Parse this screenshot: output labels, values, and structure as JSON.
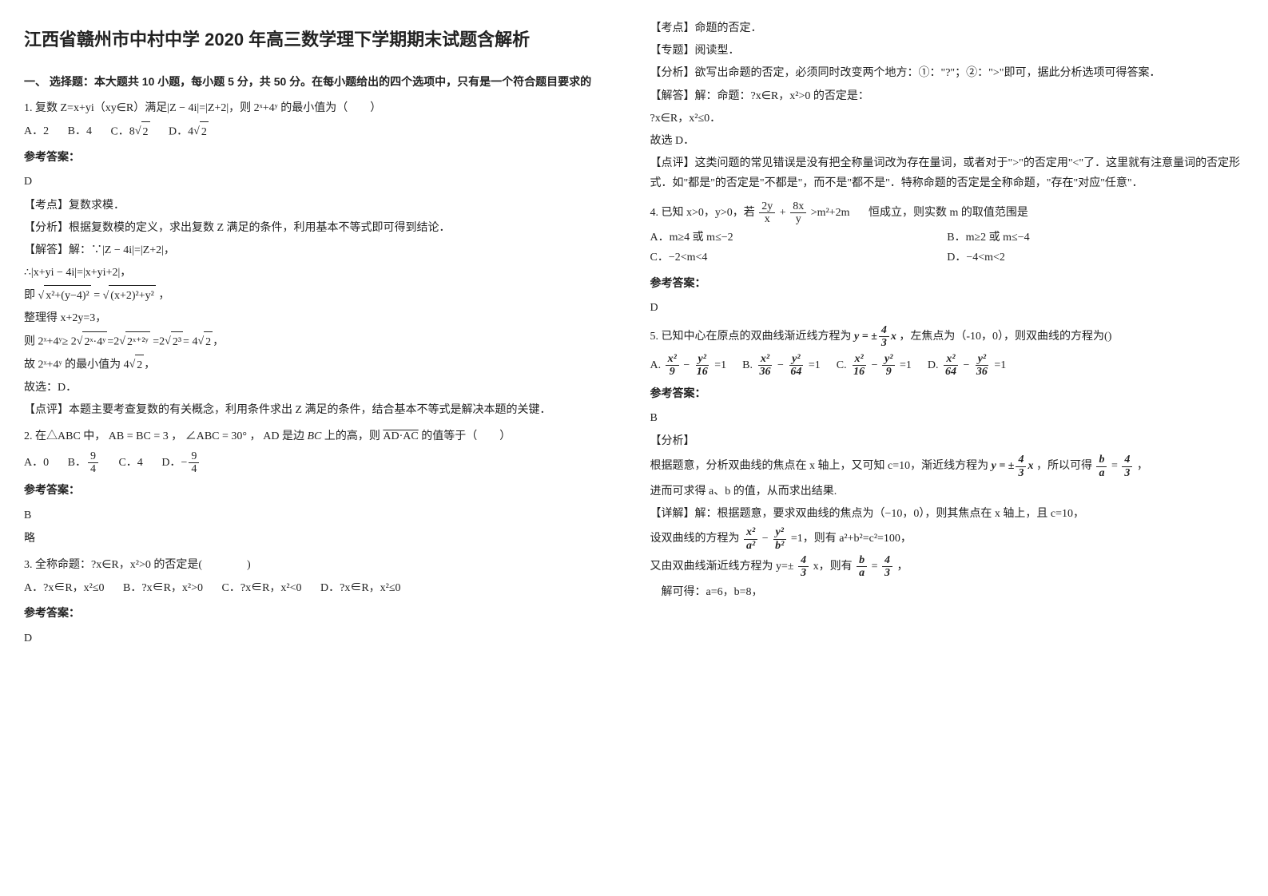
{
  "title": "江西省赣州市中村中学 2020 年高三数学理下学期期末试题含解析",
  "part1_heading": "一、 选择题：本大题共 10 小题，每小题 5 分，共 50 分。在每小题给出的四个选项中，只有是一个符合题目要求的",
  "q1": {
    "stem": "1. 复数 Z=x+yi（xy∈R）满足|Z − 4i|=|Z+2|，则 2ˣ+4ʸ 的最小值为（　　）",
    "opts": {
      "a": "A．2",
      "b": "B．4",
      "c": "C．8",
      "d": "D．4"
    },
    "sqrt_c": "2",
    "sqrt_d": "2",
    "ans_label": "参考答案：",
    "ans": "D",
    "kp": "【考点】复数求模．",
    "fx": "【分析】根据复数模的定义，求出复数 Z 满足的条件，利用基本不等式即可得到结论．",
    "jd1": "【解答】解：∵|Z − 4i|=|Z+2|，",
    "jd2": "∴|x+yi − 4i|=|x+yi+2|，",
    "jd3a": "即",
    "jd3b": "x²+(y−4)²",
    "jd3c": "=",
    "jd3d": "(x+2)²+y²",
    "jd3e": "，",
    "jd4": "整理得 x+2y=3，",
    "jd5a": "则 2ˣ+4ʸ≥ 2",
    "jd5b": "2ˣ·4ʸ",
    "jd5c": "=2",
    "jd5d": "2ˣ⁺²ʸ",
    "jd5e": " =2",
    "jd5f": "2³",
    "jd5g": "= 4",
    "jd5h": "2",
    "jd5i": "，",
    "jd6a": "故 2ˣ+4ʸ 的最小值为 4",
    "jd6b": "2",
    "jd6c": "，",
    "jd7": "故选：D．",
    "dp": "【点评】本题主要考查复数的有关概念，利用条件求出 Z 满足的条件，结合基本不等式是解决本题的关键．"
  },
  "q2": {
    "stem_a": "2. 在△ABC 中，",
    "ab_bc": "AB = BC = 3",
    "comma1": "，",
    "angle": "∠ABC = 30°",
    "comma2": "，",
    "ad_is": "AD 是边",
    "bc": "BC",
    "on_high": "上的高，则",
    "ad_ac": "AD·AC",
    "tail": "的值等于（　　）",
    "opt_a": "A．0",
    "opt_b": "B．",
    "opt_c": "C．4",
    "opt_d": "D．",
    "frac_b_num": "9",
    "frac_b_den": "4",
    "frac_d_num": "9",
    "frac_d_den": "4",
    "neg_d": "−",
    "ans_label": "参考答案：",
    "ans": "B",
    "略": "略"
  },
  "q3": {
    "stem": "3. 全称命题：?x∈R，x²>0 的否定是(　　　　)",
    "opts": {
      "a": "A．?x∈R，x²≤0",
      "b": "B．?x∈R，x²>0",
      "c": "C．?x∈R，x²<0",
      "d": "D．?x∈R，x²≤0"
    },
    "ans_label": "参考答案：",
    "ans": "D",
    "kp": "【考点】命题的否定．",
    "zt": "【专题】阅读型．",
    "fx": "【分析】欲写出命题的否定，必须同时改变两个地方：①：\"?\"；②：\">\"即可，据此分析选项可得答案．",
    "jd1": "【解答】解：命题：?x∈R，x²>0 的否定是：",
    "jd2": "?x∈R，x²≤0．",
    "jd3": "故选 D．",
    "dp": "【点评】这类问题的常见错误是没有把全称量词改为存在量词，或者对于\">\"的否定用\"<\"了．这里就有注意量词的否定形式．如\"都是\"的否定是\"不都是\"，而不是\"都不是\"．特称命题的否定是全称命题，\"存在\"对应\"任意\"．"
  },
  "q4": {
    "stem_a": "4. 已知 x>0，y>0，若",
    "f1n": "2y",
    "f1d": "x",
    "plus": "+",
    "f2n": "8x",
    "f2d": "y",
    "rhs": ">m²+2m",
    "stem_b": "恒成立，则实数 m 的取值范围是",
    "opts": {
      "a": "A．m≥4 或 m≤−2",
      "b": "B．m≥2 或 m≤−4",
      "c": "C．−2<m<4",
      "d": "D．−4<m<2"
    },
    "ans_label": "参考答案：",
    "ans": "D"
  },
  "q5": {
    "stem_a": "5. 已知中心在原点的双曲线渐近线方程为",
    "yeq": "y = ±",
    "f_num": "4",
    "f_den": "3",
    "x": "x",
    "stem_b": "，左焦点为（-10，0），则双曲线的方程为()",
    "o": [
      {
        "a": "x²",
        "b": "9",
        "c": "y²",
        "d": "16"
      },
      {
        "a": "x²",
        "b": "36",
        "c": "y²",
        "d": "64"
      },
      {
        "a": "x²",
        "b": "16",
        "c": "y²",
        "d": "9"
      },
      {
        "a": "x²",
        "b": "64",
        "c": "y²",
        "d": "36"
      }
    ],
    "labels": [
      "A.",
      "B.",
      "C.",
      "D."
    ],
    "eq1": "=1",
    "ans_label": "参考答案：",
    "ans": "B",
    "fx_label": "【分析】",
    "fx_a": "根据题意，分析双曲线的焦点在 x 轴上，又可知 c=10，渐近线方程为",
    "fx_b": "，所以可得",
    "ba_num": "b",
    "ba_den": "a",
    "eq": "=",
    "r_num": "4",
    "r_den": "3",
    "fx_c": "，",
    "fx_d": "进而可求得 a、b 的值，从而求出结果.",
    "xj1": "【详解】解：根据题意，要求双曲线的焦点为（−10，0），则其焦点在 x 轴上，且 c=10，",
    "xj2a": "设双曲线的方程为",
    "xa": "x²",
    "a2": "a²",
    "minus": "−",
    "yb": "y²",
    "b2": "b²",
    "xj2b": "=1，则有 a²+b²=c²=100，",
    "xj3a": "又由双曲线渐近线方程为 y=±",
    "xj3b": " x，则有",
    "xj4": "　解可得：a=6，b=8，"
  }
}
